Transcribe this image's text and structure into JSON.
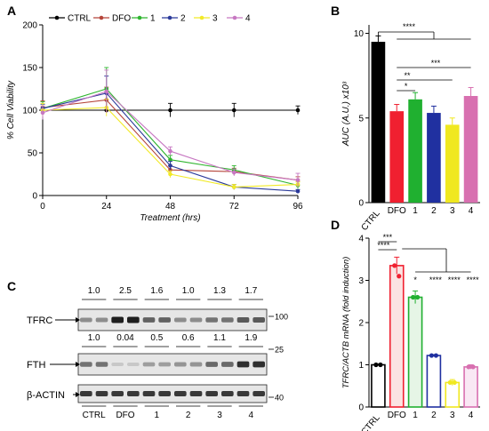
{
  "panels": {
    "A": "A",
    "B": "B",
    "C": "C",
    "D": "D"
  },
  "colors": {
    "CTRL": "#000000",
    "DFO": "#b5453a",
    "1": "#2fb52f",
    "2": "#2b3a9a",
    "3": "#f2ea27",
    "4": "#c778c2",
    "bar_CTRL": "#000000",
    "bar_DFO": "#f02030",
    "bar_1": "#20b030",
    "bar_2": "#2030a0",
    "bar_3": "#f0e820",
    "bar_4": "#d870b0"
  },
  "chart_data": [
    {
      "id": "A",
      "type": "line",
      "ylabel": "% Cell Viability",
      "xlabel": "Treatment (hrs)",
      "xlim": [
        0,
        96
      ],
      "ylim": [
        0,
        200
      ],
      "xticks": [
        "0",
        "24",
        "48",
        "72",
        "96"
      ],
      "yticks": [
        "0",
        "50",
        "100",
        "150",
        "200"
      ],
      "x": [
        0,
        24,
        48,
        72,
        96
      ],
      "legend": [
        "CTRL",
        "DFO",
        "1",
        "2",
        "3",
        "4"
      ],
      "series": [
        {
          "name": "CTRL",
          "values": [
            100,
            100,
            100,
            100,
            100
          ],
          "err": [
            0,
            0,
            8,
            8,
            5
          ]
        },
        {
          "name": "DFO",
          "values": [
            103,
            112,
            30,
            28,
            18
          ],
          "err": [
            8,
            15,
            5,
            4,
            4
          ]
        },
        {
          "name": "1",
          "values": [
            102,
            125,
            42,
            30,
            12
          ],
          "err": [
            8,
            25,
            5,
            5,
            4
          ]
        },
        {
          "name": "2",
          "values": [
            102,
            120,
            35,
            10,
            5
          ],
          "err": [
            5,
            20,
            5,
            3,
            2
          ]
        },
        {
          "name": "3",
          "values": [
            100,
            103,
            25,
            10,
            13
          ],
          "err": [
            8,
            10,
            4,
            3,
            3
          ]
        },
        {
          "name": "4",
          "values": [
            97,
            122,
            52,
            27,
            18
          ],
          "err": [
            8,
            25,
            5,
            4,
            8
          ]
        }
      ]
    },
    {
      "id": "B",
      "type": "bar",
      "ylabel": "AUC (A.U.) x10³",
      "ylim": [
        0,
        10.5
      ],
      "yticks": [
        "0",
        "5",
        "10"
      ],
      "categories": [
        "CTRL",
        "DFO",
        "1",
        "2",
        "3",
        "4"
      ],
      "values": [
        9.5,
        5.4,
        6.1,
        5.3,
        4.6,
        6.3
      ],
      "err": [
        0.35,
        0.4,
        0.4,
        0.4,
        0.4,
        0.5
      ],
      "significance": [
        "****",
        "*",
        "**",
        "***"
      ]
    },
    {
      "id": "C",
      "type": "table",
      "rows": [
        "TFRC",
        "FTH",
        "β-ACTIN"
      ],
      "groups": [
        "CTRL",
        "DFO",
        "1",
        "2",
        "3",
        "4"
      ],
      "tfrc_values": [
        "1.0",
        "2.5",
        "1.6",
        "1.0",
        "1.3",
        "1.7"
      ],
      "fth_values": [
        "1.0",
        "0.04",
        "0.5",
        "0.6",
        "1.1",
        "1.9"
      ],
      "markers": [
        "100",
        "25",
        "40"
      ],
      "tfrc_intensity": [
        0.35,
        1.0,
        0.6,
        0.35,
        0.5,
        0.65
      ],
      "fth_intensity": [
        0.5,
        0.0,
        0.25,
        0.3,
        0.55,
        0.9
      ]
    },
    {
      "id": "D",
      "type": "bar",
      "ylabel": "TFRC/ACTB mRNA (fold induction)",
      "ylim": [
        0,
        4
      ],
      "yticks": [
        "0",
        "1",
        "2",
        "3",
        "4"
      ],
      "categories": [
        "CTRL",
        "DFO",
        "1",
        "2",
        "3",
        "4"
      ],
      "values": [
        1.0,
        3.35,
        2.6,
        1.22,
        0.58,
        0.95
      ],
      "err": [
        0.02,
        0.2,
        0.15,
        0.02,
        0.07,
        0.05
      ],
      "significance": [
        "***",
        "****",
        "*",
        "****",
        "****",
        "****"
      ]
    }
  ]
}
